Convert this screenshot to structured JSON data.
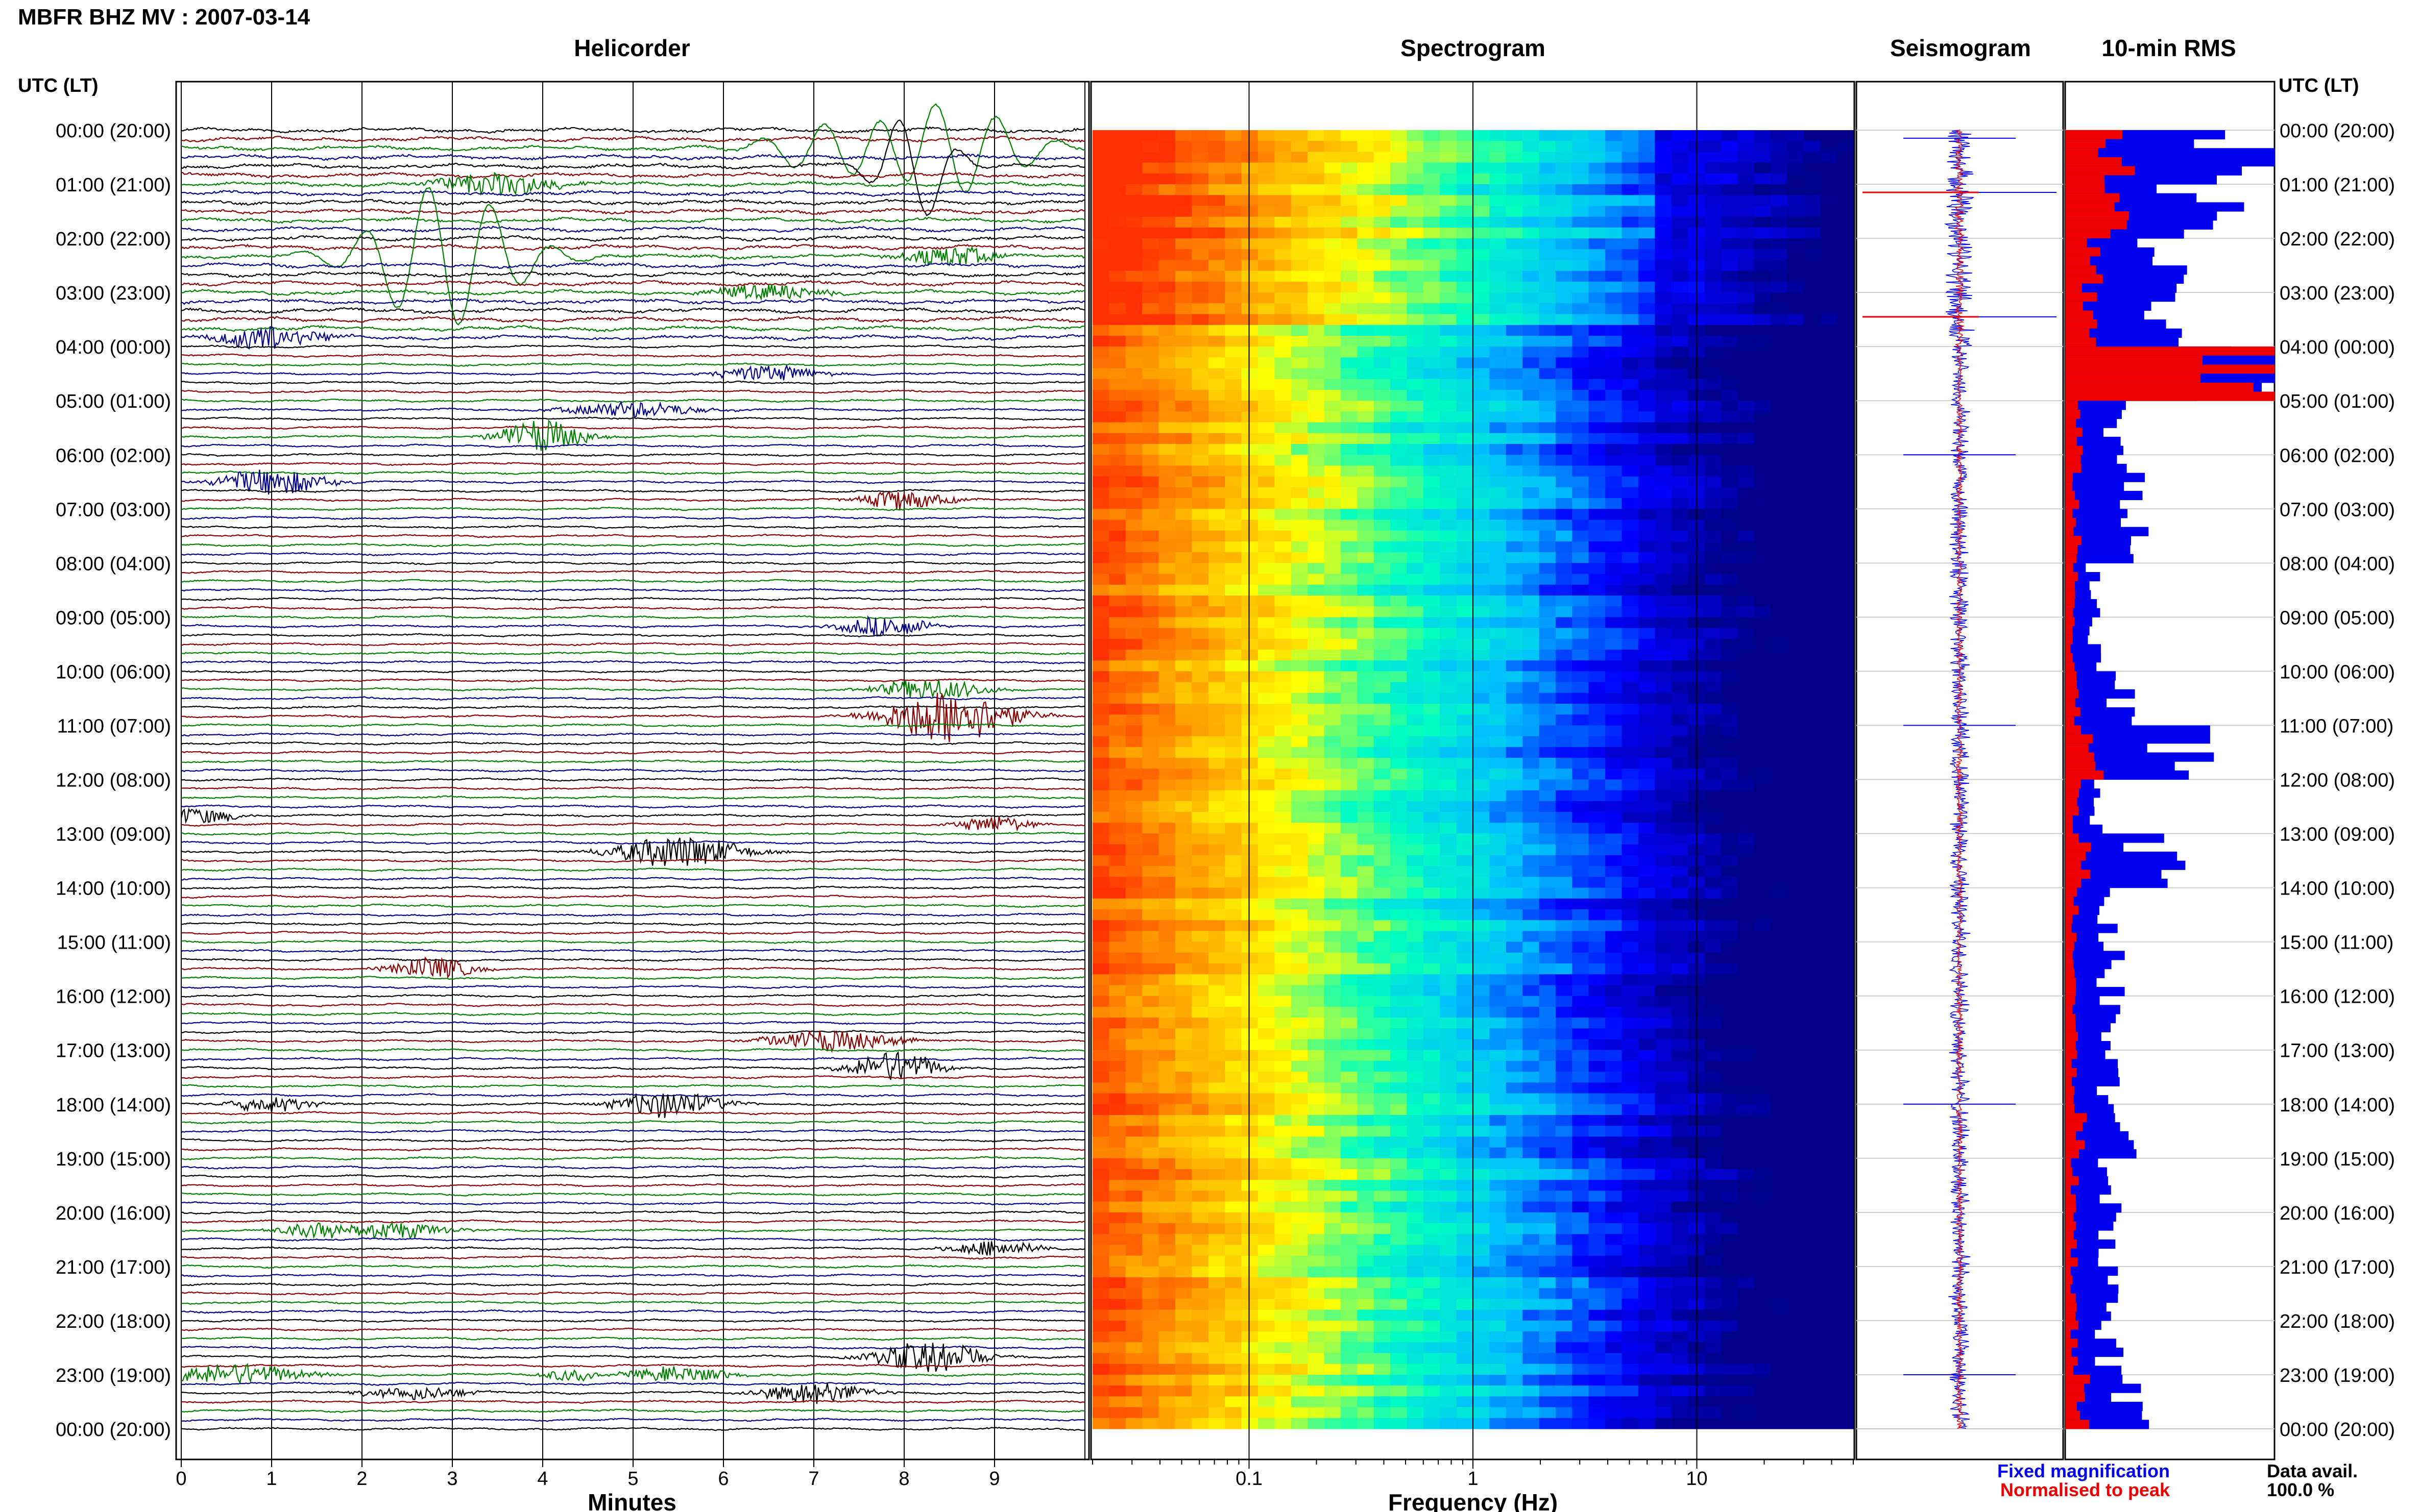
{
  "page": {
    "header": "MBFR BHZ MV : 2007-03-14",
    "time_axis_label": "UTC (LT)",
    "panels": {
      "helicorder": "Helicorder",
      "spectrogram": "Spectrogram",
      "seismogram": "Seismogram",
      "rms": "10-min RMS"
    },
    "legend": {
      "fixed": "Fixed magnification",
      "normalised": "Normalised to peak",
      "fixed_color": "#0000ee",
      "normalised_color": "#ee0000"
    },
    "data_avail_label": "Data avail.",
    "data_avail_value": "100.0 %"
  },
  "chart_data": [
    {
      "type": "line",
      "title": "Helicorder",
      "xlabel": "Minutes",
      "xticks": [
        "0",
        "1",
        "2",
        "3",
        "4",
        "5",
        "6",
        "7",
        "8",
        "9"
      ],
      "xlim": [
        0,
        10
      ],
      "row_minutes": 10,
      "rows": 145,
      "trace_colors": [
        "#000000",
        "#8b0000",
        "#008000",
        "#00008b"
      ],
      "events": [
        {
          "row": 2,
          "minute": 7.3,
          "amp": 3.0,
          "len": 1.5,
          "kind": "wave"
        },
        {
          "row": 2,
          "minute": 8.5,
          "amp": 5.0,
          "len": 1.5,
          "kind": "wave"
        },
        {
          "row": 4,
          "minute": 8.1,
          "amp": 6.0,
          "len": 0.8,
          "kind": "wave"
        },
        {
          "row": 6,
          "minute": 3.5,
          "amp": 2.0,
          "len": 1.2,
          "kind": "burst"
        },
        {
          "row": 14,
          "minute": 2.9,
          "amp": 8.0,
          "len": 1.5,
          "kind": "wave"
        },
        {
          "row": 14,
          "minute": 8.5,
          "amp": 2.0,
          "len": 0.8,
          "kind": "burst"
        },
        {
          "row": 18,
          "minute": 6.5,
          "amp": 1.5,
          "len": 1.0,
          "kind": "burst"
        },
        {
          "row": 23,
          "minute": 1.0,
          "amp": 2.5,
          "len": 0.9,
          "kind": "burst"
        },
        {
          "row": 27,
          "minute": 6.5,
          "amp": 1.5,
          "len": 1.0,
          "kind": "burst"
        },
        {
          "row": 31,
          "minute": 5.0,
          "amp": 1.5,
          "len": 1.2,
          "kind": "burst"
        },
        {
          "row": 34,
          "minute": 4.0,
          "amp": 3.0,
          "len": 0.8,
          "kind": "burst"
        },
        {
          "row": 39,
          "minute": 1.0,
          "amp": 2.5,
          "len": 1.0,
          "kind": "burst"
        },
        {
          "row": 41,
          "minute": 8.0,
          "amp": 2.0,
          "len": 0.8,
          "kind": "burst"
        },
        {
          "row": 55,
          "minute": 7.8,
          "amp": 2.0,
          "len": 0.8,
          "kind": "burst"
        },
        {
          "row": 62,
          "minute": 8.3,
          "amp": 2.0,
          "len": 1.0,
          "kind": "burst"
        },
        {
          "row": 65,
          "minute": 8.5,
          "amp": 5.0,
          "len": 1.2,
          "kind": "burst"
        },
        {
          "row": 76,
          "minute": 0.2,
          "amp": 1.5,
          "len": 0.7,
          "kind": "burst"
        },
        {
          "row": 77,
          "minute": 9.0,
          "amp": 1.5,
          "len": 0.7,
          "kind": "burst"
        },
        {
          "row": 80,
          "minute": 5.5,
          "amp": 3.0,
          "len": 1.2,
          "kind": "burst"
        },
        {
          "row": 93,
          "minute": 2.8,
          "amp": 2.0,
          "len": 0.8,
          "kind": "burst"
        },
        {
          "row": 101,
          "minute": 7.2,
          "amp": 2.0,
          "len": 1.2,
          "kind": "burst"
        },
        {
          "row": 104,
          "minute": 7.9,
          "amp": 3.0,
          "len": 0.8,
          "kind": "burst"
        },
        {
          "row": 108,
          "minute": 1.0,
          "amp": 1.5,
          "len": 0.8,
          "kind": "burst"
        },
        {
          "row": 108,
          "minute": 5.4,
          "amp": 2.5,
          "len": 1.0,
          "kind": "burst"
        },
        {
          "row": 122,
          "minute": 1.5,
          "amp": 1.5,
          "len": 0.7,
          "kind": "burst"
        },
        {
          "row": 122,
          "minute": 2.4,
          "amp": 1.5,
          "len": 1.0,
          "kind": "burst"
        },
        {
          "row": 124,
          "minute": 9.0,
          "amp": 1.5,
          "len": 0.8,
          "kind": "burst"
        },
        {
          "row": 136,
          "minute": 8.3,
          "amp": 3.0,
          "len": 1.0,
          "kind": "burst"
        },
        {
          "row": 138,
          "minute": 0.6,
          "amp": 2.0,
          "len": 1.3,
          "kind": "burst"
        },
        {
          "row": 138,
          "minute": 4.3,
          "amp": 1.2,
          "len": 0.5,
          "kind": "burst"
        },
        {
          "row": 138,
          "minute": 5.5,
          "amp": 1.5,
          "len": 1.0,
          "kind": "burst"
        },
        {
          "row": 140,
          "minute": 7.0,
          "amp": 2.0,
          "len": 1.0,
          "kind": "burst"
        },
        {
          "row": 140,
          "minute": 2.6,
          "amp": 1.2,
          "len": 1.0,
          "kind": "burst"
        }
      ]
    },
    {
      "type": "heatmap",
      "title": "Spectrogram",
      "xlabel": "Frequency (Hz)",
      "x_scale": "log",
      "xlim": [
        0.02,
        50
      ],
      "xticks": [
        "0.1",
        "1",
        "10"
      ],
      "colormap": [
        "#00008b",
        "#0000ff",
        "#00bfff",
        "#00ffc0",
        "#ffff00",
        "#ffa000",
        "#ff3000"
      ],
      "notes": "Energy concentrated below 0.1 Hz (orange/yellow), falling off to dark blue above ~3 Hz; elevated energy in first 4 hours."
    },
    {
      "type": "line",
      "title": "Seismogram",
      "series": [
        {
          "name": "Fixed magnification",
          "color": "#0000ee"
        },
        {
          "name": "Normalised to peak",
          "color": "#ee0000"
        }
      ]
    },
    {
      "type": "bar",
      "title": "10-min RMS",
      "orientation": "horizontal",
      "bins": 144,
      "hourly_fixed": [
        9.5,
        7.5,
        5.5,
        5.0,
        9.8,
        3.0,
        3.5,
        3.5,
        1.5,
        1.5,
        3.0,
        7.0,
        2.0,
        5.0,
        2.5,
        2.5,
        2.5,
        2.5,
        3.0,
        2.5,
        2.5,
        2.5,
        2.5,
        3.5
      ],
      "hourly_normalised": [
        3.0,
        3.5,
        1.5,
        1.5,
        9.8,
        0.7,
        0.6,
        0.6,
        0.5,
        0.5,
        0.6,
        1.5,
        0.6,
        1.0,
        0.5,
        0.5,
        0.5,
        0.5,
        0.8,
        0.5,
        0.5,
        0.5,
        0.5,
        1.0
      ],
      "max": 10
    }
  ],
  "time_labels": [
    "00:00 (20:00)",
    "01:00 (21:00)",
    "02:00 (22:00)",
    "03:00 (23:00)",
    "04:00 (00:00)",
    "05:00 (01:00)",
    "06:00 (02:00)",
    "07:00 (03:00)",
    "08:00 (04:00)",
    "09:00 (05:00)",
    "10:00 (06:00)",
    "11:00 (07:00)",
    "12:00 (08:00)",
    "13:00 (09:00)",
    "14:00 (10:00)",
    "15:00 (11:00)",
    "16:00 (12:00)",
    "17:00 (13:00)",
    "18:00 (14:00)",
    "19:00 (15:00)",
    "20:00 (16:00)",
    "21:00 (17:00)",
    "22:00 (18:00)",
    "23:00 (19:00)",
    "00:00 (20:00)"
  ]
}
